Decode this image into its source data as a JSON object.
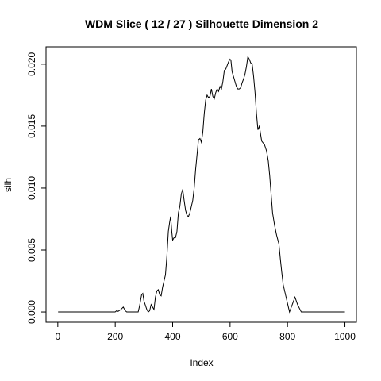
{
  "chart_data": {
    "type": "line",
    "title": "WDM Slice ( 12 / 27 )  Silhouette Dimension 2",
    "xlabel": "Index",
    "ylabel": "silh",
    "color": "#000000",
    "xlim": [
      -41,
      1040
    ],
    "ylim": [
      -0.00083,
      0.0214
    ],
    "xticks": [
      0,
      200,
      400,
      600,
      800,
      1000
    ],
    "yticks": [
      {
        "value": 0,
        "label": "0.000"
      },
      {
        "value": 0.005,
        "label": "0.005"
      },
      {
        "value": 0.01,
        "label": "0.010"
      },
      {
        "value": 0.015,
        "label": "0.015"
      },
      {
        "value": 0.02,
        "label": "0.020"
      }
    ],
    "x": [
      1,
      200,
      205,
      210,
      220,
      228,
      235,
      240,
      280,
      285,
      292,
      296,
      300,
      310,
      315,
      320,
      325,
      330,
      335,
      340,
      345,
      350,
      355,
      360,
      365,
      370,
      375,
      380,
      385,
      390,
      393,
      397,
      400,
      405,
      410,
      415,
      420,
      425,
      430,
      435,
      440,
      445,
      450,
      455,
      460,
      465,
      470,
      475,
      480,
      485,
      490,
      495,
      500,
      505,
      510,
      515,
      520,
      525,
      530,
      535,
      540,
      545,
      550,
      555,
      560,
      565,
      570,
      575,
      580,
      585,
      590,
      595,
      600,
      603,
      607,
      612,
      617,
      622,
      627,
      632,
      637,
      642,
      647,
      652,
      657,
      662,
      667,
      672,
      677,
      682,
      687,
      692,
      697,
      702,
      710,
      720,
      727,
      733,
      738,
      743,
      748,
      755,
      762,
      770,
      775,
      780,
      785,
      795,
      800,
      807,
      815,
      826,
      835,
      848,
      1000
    ],
    "values": [
      0,
      0,
      0.0001,
      5e-05,
      0.0002,
      0.0004,
      0.0001,
      0,
      0,
      0.0005,
      0.0014,
      0.0015,
      0.0009,
      0.0002,
      0,
      0.0001,
      0.0006,
      0.0004,
      0.0002,
      0.0012,
      0.0017,
      0.0018,
      0.0014,
      0.0013,
      0.002,
      0.0025,
      0.003,
      0.0045,
      0.0065,
      0.0073,
      0.0077,
      0.0065,
      0.0058,
      0.006,
      0.006,
      0.0065,
      0.008,
      0.0085,
      0.0095,
      0.0099,
      0.009,
      0.0082,
      0.0078,
      0.0077,
      0.008,
      0.0085,
      0.009,
      0.01,
      0.0115,
      0.0127,
      0.0139,
      0.014,
      0.0137,
      0.0145,
      0.016,
      0.0171,
      0.0175,
      0.0173,
      0.0174,
      0.018,
      0.0174,
      0.0172,
      0.0177,
      0.018,
      0.0178,
      0.0182,
      0.018,
      0.0186,
      0.0195,
      0.0196,
      0.0199,
      0.0202,
      0.0204,
      0.0203,
      0.0194,
      0.019,
      0.0186,
      0.0182,
      0.018,
      0.018,
      0.0181,
      0.0185,
      0.0188,
      0.0192,
      0.0198,
      0.0206,
      0.0204,
      0.0201,
      0.02,
      0.019,
      0.0177,
      0.016,
      0.0147,
      0.015,
      0.0138,
      0.0135,
      0.013,
      0.0122,
      0.011,
      0.0095,
      0.008,
      0.007,
      0.0062,
      0.0055,
      0.0043,
      0.0032,
      0.0022,
      0.0012,
      0.0007,
      0,
      0.0005,
      0.0012,
      0.0006,
      0,
      0
    ]
  }
}
